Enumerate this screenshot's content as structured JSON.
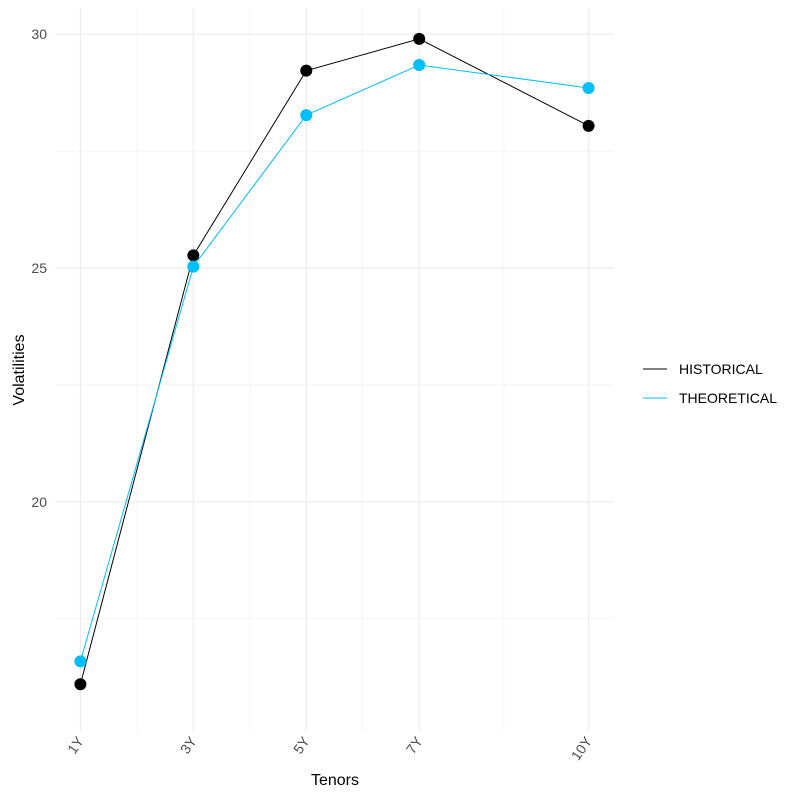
{
  "chart_data": {
    "type": "line",
    "title": "",
    "xlabel": "Tenors",
    "ylabel": "Volatilities",
    "categories": [
      "1Y",
      "3Y",
      "5Y",
      "7Y",
      "10Y"
    ],
    "x": [
      1,
      3,
      5,
      7,
      10
    ],
    "x_ticks": [
      1,
      3,
      5,
      7,
      10
    ],
    "xlim": [
      0.55,
      10.45
    ],
    "y_ticks": [
      20,
      25,
      30
    ],
    "y_minor_ticks": [
      17.5,
      22.5,
      27.5
    ],
    "ylim": [
      15.1,
      30.56
    ],
    "grid": true,
    "legend_position": "right",
    "markers": true,
    "series": [
      {
        "name": "HISTORICAL",
        "color": "#000000",
        "values": [
          16.1,
          25.27,
          29.22,
          29.9,
          28.04
        ]
      },
      {
        "name": "THEORETICAL",
        "color": "#00bfff",
        "values": [
          16.59,
          25.03,
          28.27,
          29.34,
          28.85
        ]
      }
    ]
  }
}
